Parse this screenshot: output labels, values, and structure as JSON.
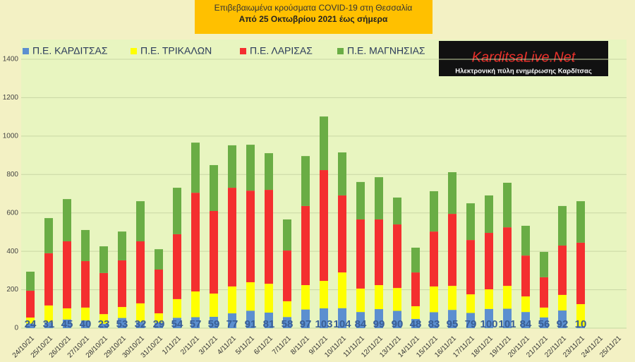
{
  "chart_data": {
    "type": "stacked_bar",
    "title": "Επιβεβαιωμένα κρούσματα COVID-19 στη Θεσσαλία",
    "subtitle": "Από 25 Οκτωβρίου 2021 έως σήμερα",
    "source_logo": "KarditsaLive.Net",
    "source_tagline": "Ηλεκτρονική πύλη ενημέρωσης Καρδίτσας",
    "categories": [
      "24/10/21",
      "25/10/21",
      "26/10/21",
      "27/10/21",
      "28/10/21",
      "29/10/21",
      "30/10/21",
      "31/10/21",
      "1/11/21",
      "2/11/21",
      "3/11/21",
      "4/11/21",
      "5/11/21",
      "6/11/21",
      "7/11/21",
      "8/11/21",
      "9/11/21",
      "10/11/21",
      "11/11/21",
      "12/11/21",
      "13/11/21",
      "14/11/21",
      "15/11/21",
      "16/11/21",
      "17/11/21",
      "18/11/21",
      "19/11/21",
      "20/11/21",
      "21/11/21",
      "22/11/21",
      "23/11/21",
      "24/11/21",
      "25/11/21"
    ],
    "series": [
      {
        "name": "Π.Ε. ΚΑΡΔΙΤΣΑΣ",
        "color": "#5b8fd0",
        "values": [
          24,
          31,
          45,
          40,
          23,
          53,
          32,
          29,
          54,
          57,
          59,
          77,
          91,
          81,
          58,
          97,
          103,
          104,
          84,
          99,
          90,
          48,
          83,
          95,
          79,
          100,
          101,
          84,
          56,
          92,
          10,
          null,
          null
        ]
      },
      {
        "name": "Π.Ε. ΤΡΙΚΑΛΩΝ",
        "color": "#ffff00",
        "values": [
          31,
          87,
          58,
          67,
          50,
          57,
          97,
          48,
          97,
          134,
          121,
          140,
          148,
          150,
          82,
          127,
          143,
          186,
          122,
          125,
          119,
          66,
          134,
          125,
          97,
          102,
          119,
          81,
          51,
          81,
          115,
          null,
          null
        ]
      },
      {
        "name": "Π.Ε. ΛΑΡΙΣΑΣ",
        "color": "#f42f2f",
        "values": [
          140,
          272,
          349,
          242,
          214,
          243,
          323,
          228,
          338,
          514,
          430,
          514,
          477,
          489,
          264,
          412,
          577,
          401,
          360,
          342,
          331,
          176,
          286,
          375,
          283,
          294,
          305,
          213,
          158,
          257,
          320,
          null,
          null
        ]
      },
      {
        "name": "Π.Ε. ΜΑΓΝΗΣΙΑΣ",
        "color": "#6aad45",
        "values": [
          99,
          183,
          220,
          162,
          139,
          150,
          209,
          106,
          242,
          261,
          239,
          221,
          239,
          191,
          162,
          260,
          279,
          224,
          195,
          220,
          140,
          129,
          210,
          217,
          191,
          195,
          232,
          155,
          132,
          206,
          216,
          null,
          null
        ]
      }
    ],
    "ylim": [
      0,
      1400
    ],
    "yticks": [
      0,
      200,
      400,
      600,
      800,
      1000,
      1200,
      1400
    ],
    "grid": true,
    "legend": "top"
  }
}
